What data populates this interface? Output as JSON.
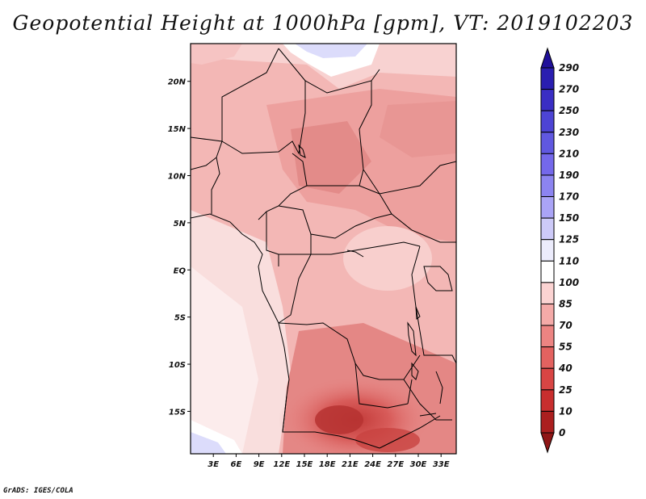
{
  "title": "Geopotential Height at 1000hPa [gpm], VT: 2019102203",
  "footer": "GrADS: IGES/COLA",
  "map": {
    "region": "Central Africa",
    "lat_labels": [
      "20N",
      "15N",
      "10N",
      "5N",
      "EQ",
      "5S",
      "10S",
      "15S"
    ],
    "lat_values": [
      20,
      15,
      10,
      5,
      0,
      -5,
      -10,
      -15
    ],
    "lon_labels": [
      "3E",
      "6E",
      "9E",
      "12E",
      "15E",
      "18E",
      "21E",
      "24E",
      "27E",
      "30E",
      "33E"
    ],
    "lon_values": [
      3,
      6,
      9,
      12,
      15,
      18,
      21,
      24,
      27,
      30,
      33
    ],
    "lon_range": [
      0,
      35
    ],
    "lat_range": [
      -19.5,
      24
    ]
  },
  "colorbar": {
    "levels": [
      "290",
      "270",
      "250",
      "230",
      "210",
      "190",
      "170",
      "150",
      "125",
      "110",
      "100",
      "85",
      "70",
      "55",
      "40",
      "25",
      "10",
      "0"
    ],
    "colors": [
      "#20109a",
      "#2a1eb0",
      "#3a2ec4",
      "#4d44d4",
      "#6058e0",
      "#7468ea",
      "#8c84f0",
      "#aaa4f6",
      "#cdcaf8",
      "#ececfc",
      "#ffffff",
      "#fbd3d2",
      "#f4aaa8",
      "#ec8482",
      "#e36260",
      "#d84544",
      "#c82e2e",
      "#ab1f1f",
      "#8f1616"
    ]
  },
  "chart_data": {
    "type": "heatmap",
    "title": "Geopotential Height at 1000hPa [gpm], VT: 2019102203",
    "variable": "Geopotential Height",
    "units": "gpm",
    "level": "1000hPa",
    "valid_time": "2019102203",
    "x_ticks": [
      "3E",
      "6E",
      "9E",
      "12E",
      "15E",
      "18E",
      "21E",
      "24E",
      "27E",
      "30E",
      "33E"
    ],
    "y_ticks": [
      "20N",
      "15N",
      "10N",
      "5N",
      "EQ",
      "5S",
      "10S",
      "15S"
    ],
    "levels": [
      0,
      10,
      25,
      40,
      55,
      70,
      85,
      100,
      110,
      125,
      150,
      170,
      190,
      210,
      230,
      250,
      270,
      290
    ]
  }
}
